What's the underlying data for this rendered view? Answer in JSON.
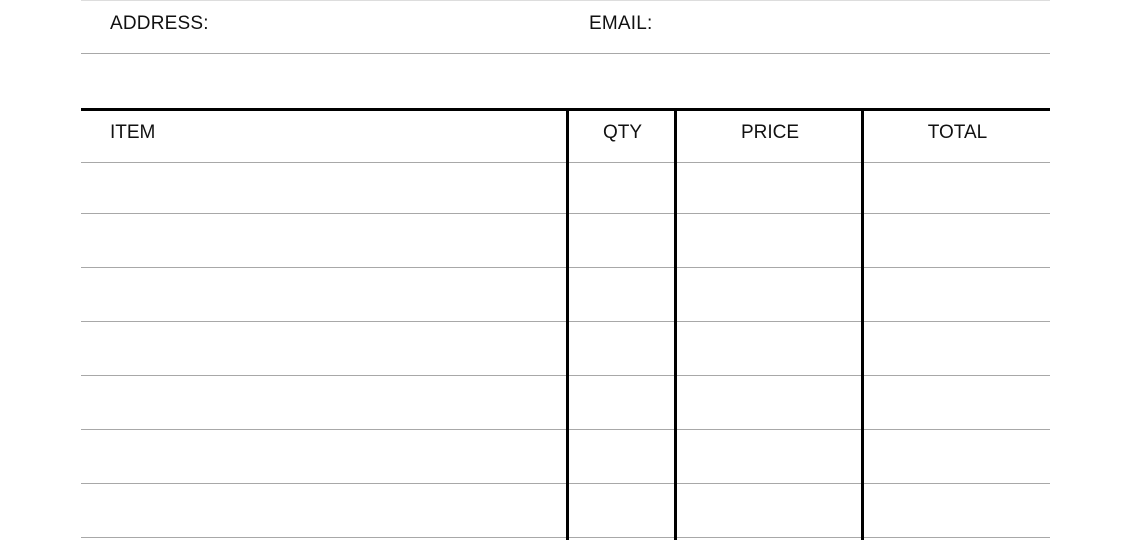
{
  "contact": {
    "address_label": "ADDRESS:",
    "email_label": "EMAIL:"
  },
  "table": {
    "columns": [
      "ITEM",
      "QTY",
      "PRICE",
      "TOTAL"
    ],
    "rows": [
      [
        "",
        "",
        "",
        ""
      ],
      [
        "",
        "",
        "",
        ""
      ],
      [
        "",
        "",
        "",
        ""
      ],
      [
        "",
        "",
        "",
        ""
      ],
      [
        "",
        "",
        "",
        ""
      ],
      [
        "",
        "",
        "",
        ""
      ],
      [
        "",
        "",
        "",
        ""
      ]
    ]
  }
}
